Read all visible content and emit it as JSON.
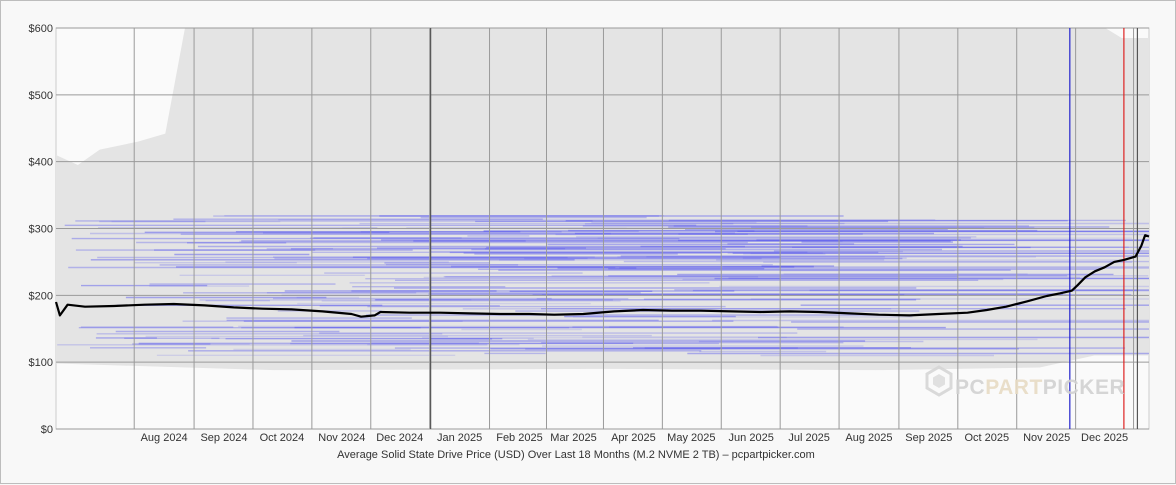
{
  "chart_data": {
    "type": "line",
    "caption": "Average Solid State Drive Price (USD) Over Last 18 Months (M.2 NVME 2 TB) – pcpartpicker.com",
    "ylim": [
      0,
      600
    ],
    "y_ticks": [
      {
        "value": 0,
        "label": "$0"
      },
      {
        "value": 100,
        "label": "$100"
      },
      {
        "value": 200,
        "label": "$200"
      },
      {
        "value": 300,
        "label": "$300"
      },
      {
        "value": 400,
        "label": "$400"
      },
      {
        "value": 500,
        "label": "$500"
      },
      {
        "value": 600,
        "label": "$600"
      }
    ],
    "xlim": [
      "2024-06-20",
      "2026-01-07"
    ],
    "month_ticks": [
      {
        "date": "2024-08-15",
        "label": "Aug 2024"
      },
      {
        "date": "2024-09-15",
        "label": "Sep 2024"
      },
      {
        "date": "2024-10-15",
        "label": "Oct 2024"
      },
      {
        "date": "2024-11-15",
        "label": "Nov 2024"
      },
      {
        "date": "2024-12-15",
        "label": "Dec 2024"
      },
      {
        "date": "2025-01-15",
        "label": "Jan 2025"
      },
      {
        "date": "2025-02-15",
        "label": "Feb 2025"
      },
      {
        "date": "2025-03-15",
        "label": "Mar 2025"
      },
      {
        "date": "2025-04-15",
        "label": "Apr 2025"
      },
      {
        "date": "2025-05-15",
        "label": "May 2025"
      },
      {
        "date": "2025-06-15",
        "label": "Jun 2025"
      },
      {
        "date": "2025-07-15",
        "label": "Jul 2025"
      },
      {
        "date": "2025-08-15",
        "label": "Aug 2025"
      },
      {
        "date": "2025-09-15",
        "label": "Sep 2025"
      },
      {
        "date": "2025-10-15",
        "label": "Oct 2025"
      },
      {
        "date": "2025-11-15",
        "label": "Nov 2025"
      },
      {
        "date": "2025-12-15",
        "label": "Dec 2025"
      }
    ],
    "vertical_markers": [
      {
        "date": "2024-12-31",
        "color": "#555555"
      },
      {
        "date": "2025-11-27",
        "color": "#2222cc"
      },
      {
        "date": "2025-12-25",
        "color": "#dd2222"
      },
      {
        "date": "2026-01-01",
        "color": "#555555"
      }
    ],
    "series": [
      {
        "color": "#000000",
        "points": [
          [
            "2024-06-20",
            190
          ],
          [
            "2024-06-22",
            170
          ],
          [
            "2024-06-26",
            186
          ],
          [
            "2024-07-05",
            183
          ],
          [
            "2024-07-20",
            184
          ],
          [
            "2024-08-05",
            186
          ],
          [
            "2024-08-20",
            187
          ],
          [
            "2024-09-05",
            185
          ],
          [
            "2024-09-20",
            182
          ],
          [
            "2024-10-05",
            180
          ],
          [
            "2024-10-20",
            179
          ],
          [
            "2024-11-05",
            176
          ],
          [
            "2024-11-20",
            172
          ],
          [
            "2024-11-25",
            168
          ],
          [
            "2024-12-02",
            170
          ],
          [
            "2024-12-05",
            175
          ],
          [
            "2024-12-20",
            174
          ],
          [
            "2025-01-05",
            174
          ],
          [
            "2025-01-20",
            173
          ],
          [
            "2025-02-05",
            172
          ],
          [
            "2025-02-20",
            172
          ],
          [
            "2025-03-05",
            171
          ],
          [
            "2025-03-20",
            172
          ],
          [
            "2025-04-05",
            176
          ],
          [
            "2025-04-20",
            178
          ],
          [
            "2025-05-05",
            177
          ],
          [
            "2025-05-20",
            177
          ],
          [
            "2025-06-05",
            176
          ],
          [
            "2025-06-20",
            175
          ],
          [
            "2025-07-05",
            176
          ],
          [
            "2025-07-20",
            175
          ],
          [
            "2025-08-05",
            173
          ],
          [
            "2025-08-20",
            171
          ],
          [
            "2025-09-05",
            170
          ],
          [
            "2025-09-20",
            172
          ],
          [
            "2025-10-05",
            174
          ],
          [
            "2025-10-15",
            178
          ],
          [
            "2025-10-25",
            183
          ],
          [
            "2025-11-05",
            191
          ],
          [
            "2025-11-15",
            199
          ],
          [
            "2025-11-22",
            203
          ],
          [
            "2025-11-28",
            207
          ],
          [
            "2025-12-01",
            215
          ],
          [
            "2025-12-05",
            227
          ],
          [
            "2025-12-10",
            236
          ],
          [
            "2025-12-15",
            242
          ],
          [
            "2025-12-20",
            250
          ],
          [
            "2025-12-25",
            253
          ],
          [
            "2025-12-31",
            258
          ],
          [
            "2026-01-03",
            274
          ],
          [
            "2026-01-05",
            290
          ],
          [
            "2026-01-07",
            288
          ]
        ]
      }
    ],
    "watermark": {
      "part1": "PC",
      "part2": "PART",
      "part3": "PICKER",
      "colors": [
        "#d2d2d2",
        "#e8dcc4",
        "#d2d2d2"
      ]
    }
  }
}
